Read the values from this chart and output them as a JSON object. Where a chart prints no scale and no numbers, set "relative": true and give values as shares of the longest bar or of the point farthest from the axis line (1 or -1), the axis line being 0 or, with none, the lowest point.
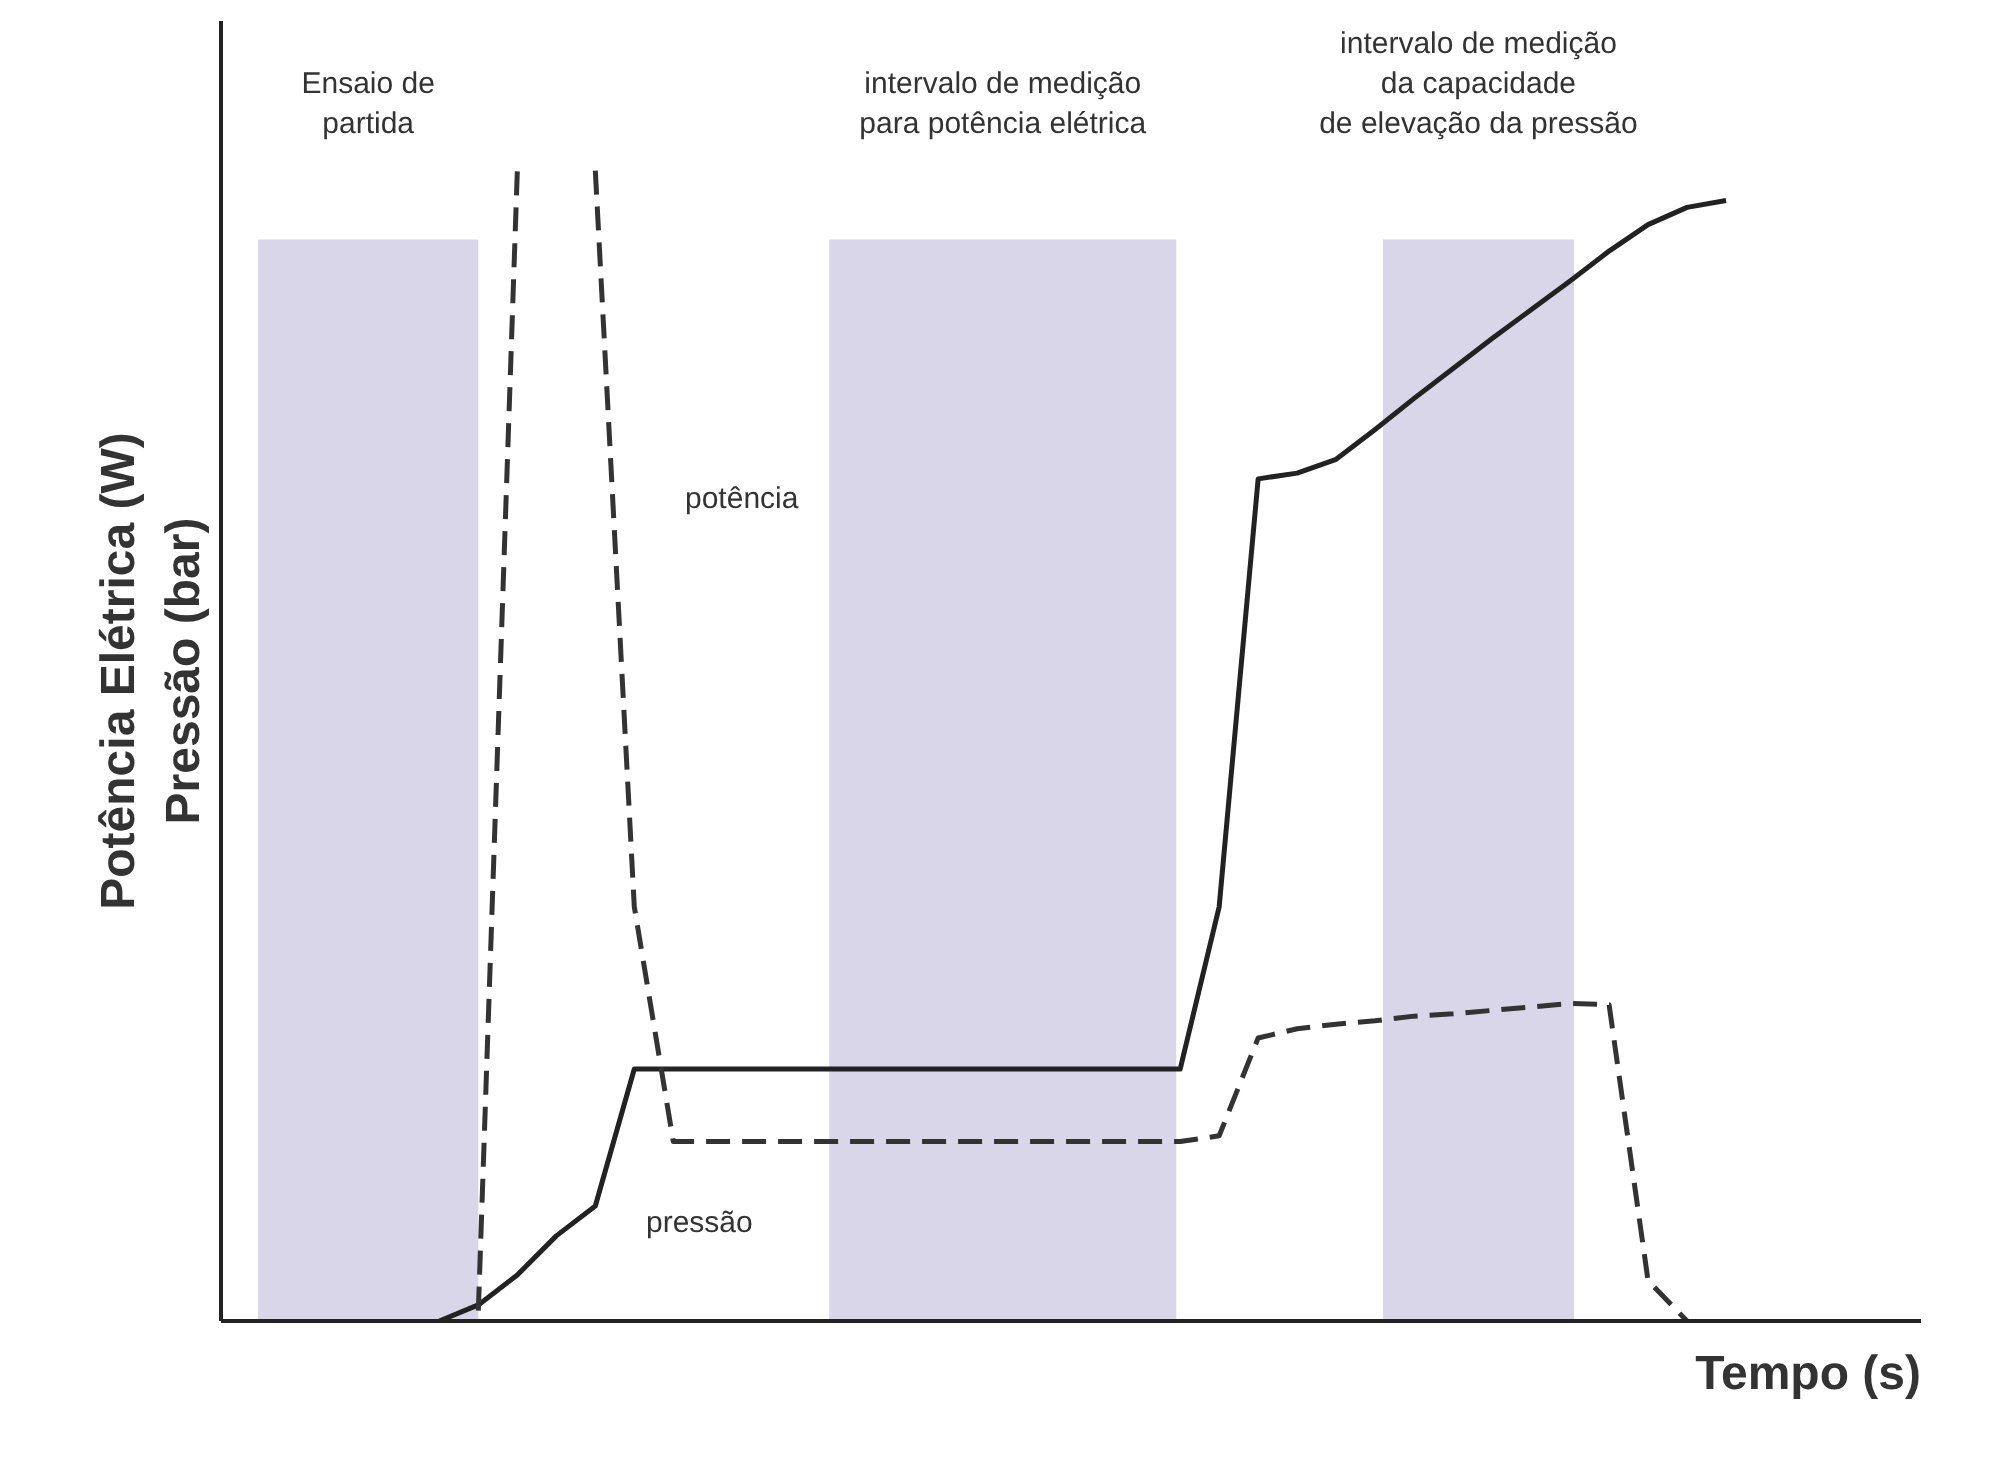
{
  "chart_data": {
    "type": "line",
    "relative": true,
    "xlabel": "Tempo (s)",
    "ylabel": "Potência Elétrica (W)\nPressão (bar)",
    "categories": [
      null,
      null,
      null,
      null,
      null,
      null,
      null,
      null,
      null,
      null,
      null,
      null,
      null,
      null,
      null,
      null,
      null,
      null,
      null,
      null,
      null,
      null,
      null,
      null,
      null,
      null,
      null,
      null,
      null,
      null,
      null,
      null,
      null,
      null,
      null,
      null,
      null,
      null,
      null,
      null,
      null,
      null
    ],
    "series": [
      {
        "name": "pressão",
        "color": "#222222",
        "line_style": "solid",
        "values": [
          null,
          null,
          null,
          null,
          null,
          0,
          0.014,
          0.04,
          0.074,
          0.1,
          0.219,
          0.219,
          0.219,
          0.219,
          0.219,
          0.219,
          0.219,
          0.219,
          0.219,
          0.219,
          0.219,
          0.219,
          0.219,
          0.219,
          0.219,
          0.36,
          0.732,
          0.737,
          0.749,
          0.775,
          0.802,
          0.828,
          0.854,
          0.879,
          0.904,
          0.93,
          0.953,
          0.968,
          0.974,
          null,
          null,
          null
        ]
      },
      {
        "name": "potência",
        "color": "#333333",
        "line_style": "dashed",
        "values": [
          null,
          null,
          null,
          null,
          null,
          null,
          0.009,
          1.0,
          null,
          1.0,
          0.36,
          0.156,
          0.156,
          0.156,
          0.156,
          0.156,
          0.156,
          0.156,
          0.156,
          0.156,
          0.156,
          0.156,
          0.156,
          0.156,
          0.156,
          0.161,
          0.246,
          0.254,
          0.258,
          0.261,
          0.265,
          0.267,
          0.27,
          0.273,
          0.276,
          0.275,
          0.035,
          0,
          null,
          null,
          null,
          null
        ]
      }
    ],
    "annotations": [
      "Ensaio de\npartida",
      "intervalo de medição\npara potência elétrica",
      "intervalo de medição\nda capacidade\nde elevação da pressão"
    ]
  }
}
